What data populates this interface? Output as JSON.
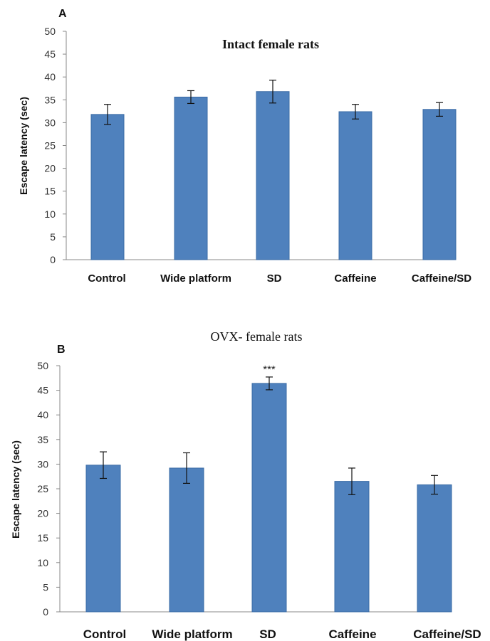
{
  "chart_data": [
    {
      "panel": "A",
      "type": "bar",
      "title": "Intact female rats",
      "xlabel": "",
      "ylabel": "Escape latency (sec)",
      "ylim": [
        0,
        50
      ],
      "yticks": [
        0,
        5,
        10,
        15,
        20,
        25,
        30,
        35,
        40,
        45,
        50
      ],
      "categories": [
        "Control",
        "Wide platform",
        "SD",
        "Caffeine",
        "Caffeine/SD"
      ],
      "values": [
        31.8,
        35.6,
        36.8,
        32.4,
        32.9
      ],
      "errors": [
        2.2,
        1.4,
        2.5,
        1.6,
        1.5
      ],
      "annotations": [
        "",
        "",
        "",
        "",
        ""
      ],
      "bar_color": "#4f81bd",
      "grid": false
    },
    {
      "panel": "B",
      "type": "bar",
      "title": "OVX- female rats",
      "xlabel": "",
      "ylabel": "Escape latency (sec)",
      "ylim": [
        0,
        50
      ],
      "yticks": [
        0,
        5,
        10,
        15,
        20,
        25,
        30,
        35,
        40,
        45,
        50
      ],
      "categories": [
        "Control",
        "Wide platform",
        "SD",
        "Caffeine",
        "Caffeine/SD"
      ],
      "values": [
        29.8,
        29.2,
        46.4,
        26.5,
        25.8
      ],
      "errors": [
        2.7,
        3.1,
        1.3,
        2.7,
        1.9
      ],
      "annotations": [
        "",
        "",
        "***",
        "",
        ""
      ],
      "bar_color": "#4f81bd",
      "grid": false
    }
  ]
}
